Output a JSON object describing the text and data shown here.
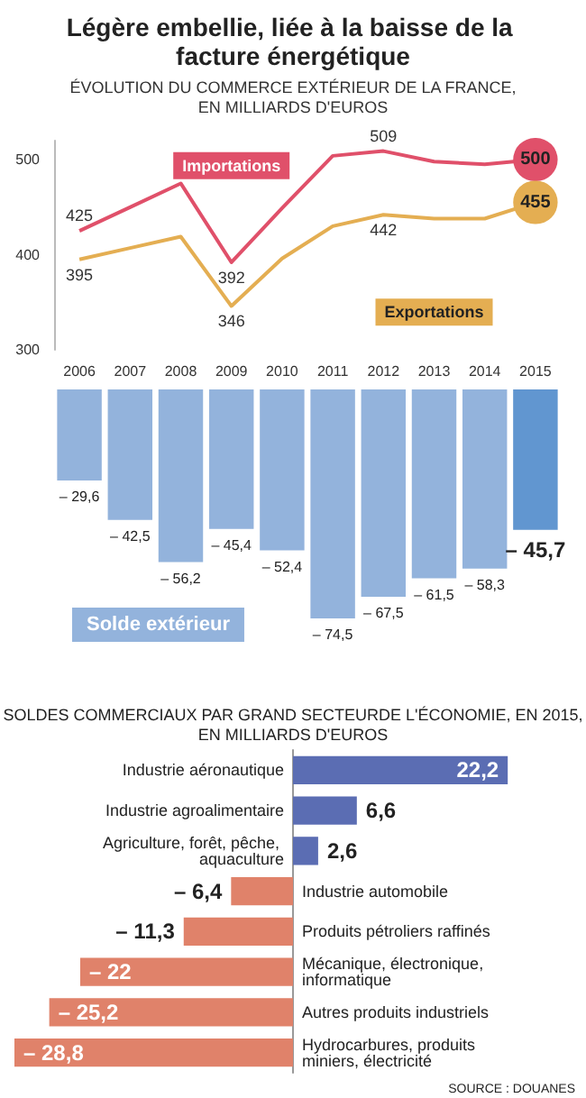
{
  "chart_data": [
    {
      "type": "line",
      "title": "Légère embellie, liée à la baisse de la facture énergétique",
      "subtitle": "ÉVOLUTION DU COMMERCE EXTÉRIEUR DE LA FRANCE,\nEN MILLIARDS D'EUROS",
      "categories": [
        "2006",
        "2007",
        "2008",
        "2009",
        "2010",
        "2011",
        "2012",
        "2013",
        "2014",
        "2015"
      ],
      "ylim": [
        300,
        520
      ],
      "yticks": [
        300,
        400,
        500
      ],
      "marker": "none",
      "legend": false,
      "series": [
        {
          "name": "Importations",
          "color": "#e0506a",
          "values": [
            425,
            450,
            475,
            392,
            449,
            504,
            509,
            498,
            495,
            500
          ],
          "value_labels": [
            "425",
            null,
            null,
            "392",
            null,
            null,
            "509",
            null,
            null,
            "500"
          ]
        },
        {
          "name": "Exportations",
          "color": "#e4ae52",
          "values": [
            395,
            407,
            419,
            346,
            396,
            430,
            442,
            438,
            438,
            455
          ],
          "value_labels": [
            "395",
            null,
            null,
            "346",
            null,
            null,
            "442",
            null,
            null,
            "455"
          ]
        }
      ]
    },
    {
      "type": "bar",
      "categories": [
        "2006",
        "2007",
        "2008",
        "2009",
        "2010",
        "2011",
        "2012",
        "2013",
        "2014",
        "2015"
      ],
      "tick_labels": false,
      "annotations": [
        "Solde extérieur"
      ],
      "values": [
        -29.6,
        -42.5,
        -56.2,
        -45.4,
        -52.4,
        -74.5,
        -67.5,
        -61.5,
        -58.3,
        -45.7
      ],
      "value_labels": [
        "– 29,6",
        "– 42,5",
        "– 56,2",
        "– 45,4",
        "– 52,4",
        "– 74,5",
        "– 67,5",
        "– 61,5",
        "– 58,3",
        "– 45,7"
      ],
      "colors": [
        "#93b3dc",
        "#93b3dc",
        "#93b3dc",
        "#93b3dc",
        "#93b3dc",
        "#93b3dc",
        "#93b3dc",
        "#93b3dc",
        "#93b3dc",
        "#6196d0"
      ]
    },
    {
      "type": "bar",
      "orientation": "horizontal",
      "title": "SOLDES COMMERCIAUX PAR GRAND SECTEURDE L'ÉCONOMIE, EN 2015,\nEN MILLIARDS D'EUROS",
      "tick_labels": "y",
      "annotations": [
        "SOURCE : DOUANES"
      ],
      "categories": [
        "Industrie aéronautique",
        "Industrie agroalimentaire",
        "Agriculture, forêt, pêche, aquaculture",
        "Industrie automobile",
        "Produits pétroliers raffinés",
        "Mécanique, électronique, informatique",
        "Autres produits industriels",
        "Hydrocarbures, produits miniers, électricité"
      ],
      "values": [
        22.2,
        6.6,
        2.6,
        -6.4,
        -11.3,
        -22,
        -25.2,
        -28.8
      ],
      "value_labels": [
        "22,2",
        "6,6",
        "2,6",
        "– 6,4",
        "– 11,3",
        "– 22",
        "– 25,2",
        "– 28,8"
      ],
      "colors": [
        "#5b6db3",
        "#5b6db3",
        "#5b6db3",
        "#e0826a",
        "#e0826a",
        "#e0826a",
        "#e0826a",
        "#e0826a"
      ]
    }
  ]
}
